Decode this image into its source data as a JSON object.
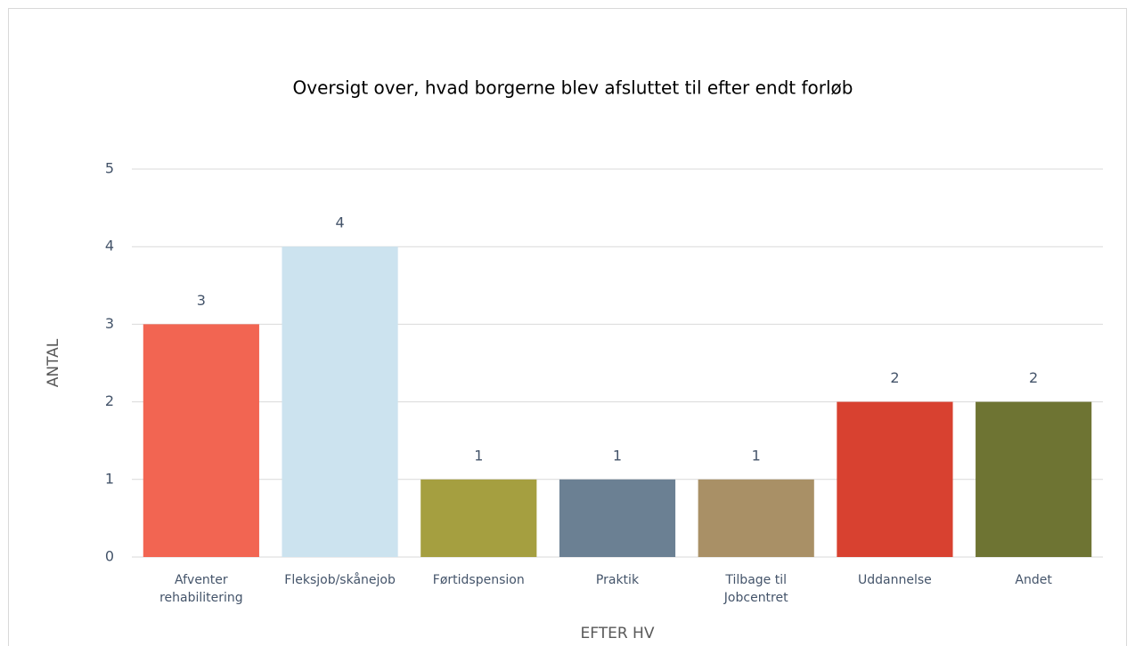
{
  "chart_data": {
    "type": "bar",
    "title": "Oversigt over, hvad borgerne blev afsluttet til efter endt forløb",
    "x_label": "EFTER HV",
    "y_label": "ANTAL",
    "categories": [
      "Afventer rehabilitering",
      "Fleksjob/skånejob",
      "Førtidspension",
      "Praktik",
      "Tilbage til Jobcentret",
      "Uddannelse",
      "Andet"
    ],
    "values": [
      3,
      4,
      1,
      1,
      1,
      2,
      2
    ],
    "colors": [
      "#f26552",
      "#cce3ef",
      "#a59f40",
      "#6b8093",
      "#a99066",
      "#d84130",
      "#6e7433"
    ],
    "ylim": [
      0,
      5
    ],
    "yticks": [
      0,
      1,
      2,
      3,
      4,
      5
    ],
    "grid": true
  }
}
